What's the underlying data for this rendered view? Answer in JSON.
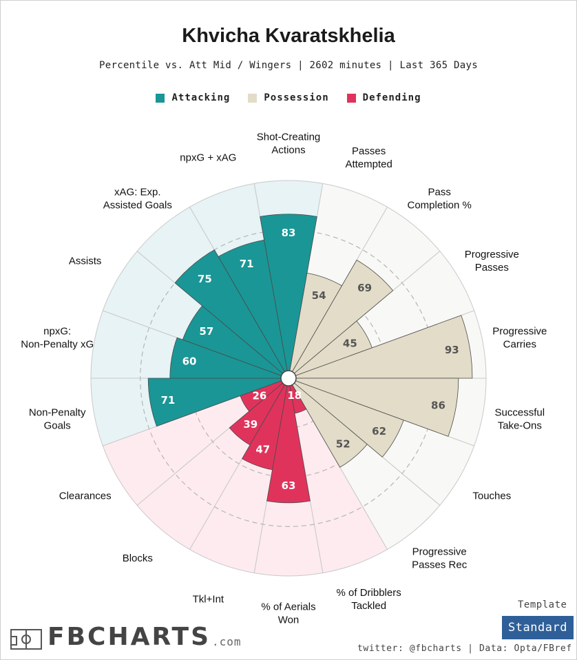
{
  "header": {
    "title": "Khvicha Kvaratskhelia",
    "subtitle": "Percentile vs. Att Mid / Wingers | 2602 minutes | Last 365 Days"
  },
  "legend": [
    {
      "label": "Attacking",
      "color": "#1a9696"
    },
    {
      "label": "Possession",
      "color": "#e2dcc8"
    },
    {
      "label": "Defending",
      "color": "#e0335c"
    }
  ],
  "chart_data": {
    "type": "polar-bar",
    "scale": [
      0,
      100
    ],
    "grid": true,
    "legend_position": "top",
    "categories": [
      {
        "label": "Shot-Creating Actions",
        "value": 83,
        "group": "Attacking"
      },
      {
        "label": "Passes Attempted",
        "value": 54,
        "group": "Possession"
      },
      {
        "label": "Pass Completion %",
        "value": 69,
        "group": "Possession"
      },
      {
        "label": "Progressive Passes",
        "value": 45,
        "group": "Possession"
      },
      {
        "label": "Progressive Carries",
        "value": 93,
        "group": "Possession"
      },
      {
        "label": "Successful Take-Ons",
        "value": 86,
        "group": "Possession"
      },
      {
        "label": "Touches",
        "value": 62,
        "group": "Possession"
      },
      {
        "label": "Progressive Passes Rec",
        "value": 52,
        "group": "Possession"
      },
      {
        "label": "% of Dribblers Tackled",
        "value": 18,
        "group": "Defending"
      },
      {
        "label": "% of Aerials Won",
        "value": 63,
        "group": "Defending"
      },
      {
        "label": "Tkl+Int",
        "value": 47,
        "group": "Defending"
      },
      {
        "label": "Blocks",
        "value": 39,
        "group": "Defending"
      },
      {
        "label": "Clearances",
        "value": 26,
        "group": "Defending"
      },
      {
        "label": "Non-Penalty Goals",
        "value": 71,
        "group": "Attacking"
      },
      {
        "label": "npxG: Non-Penalty xG",
        "value": 60,
        "group": "Attacking"
      },
      {
        "label": "Assists",
        "value": 57,
        "group": "Attacking"
      },
      {
        "label": "xAG: Exp. Assisted Goals",
        "value": 75,
        "group": "Attacking"
      },
      {
        "label": "npxG + xAG",
        "value": 71,
        "group": "Attacking"
      }
    ],
    "group_colors": {
      "Attacking": {
        "bar": "#1a9696",
        "background": "#e7f3f5",
        "text": "#ffffff"
      },
      "Possession": {
        "bar": "#e2dcc8",
        "background": "#f8f8f6",
        "text": "#555555"
      },
      "Defending": {
        "bar": "#e0335c",
        "background": "#fdebef",
        "text": "#ffffff"
      }
    }
  },
  "footer": {
    "template_label": "Template",
    "template_value": "Standard",
    "credit": "twitter: @fbcharts | Data: Opta/FBref",
    "brand_name": "FBCHARTS",
    "brand_tld": ".com"
  }
}
